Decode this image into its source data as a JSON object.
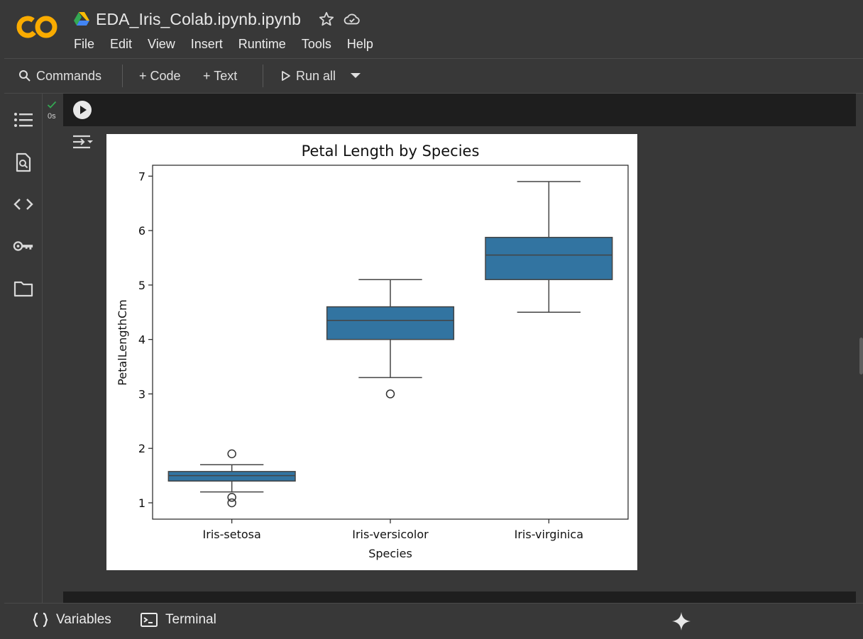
{
  "app": {
    "doc_title": "EDA_Iris_Colab.ipynb.ipynb",
    "logo_text": "CO"
  },
  "menu": [
    "File",
    "Edit",
    "View",
    "Insert",
    "Runtime",
    "Tools",
    "Help"
  ],
  "toolbar": {
    "commands_label": "Commands",
    "code_label": "+ Code",
    "text_label": "+ Text",
    "run_all_label": "Run all"
  },
  "rail_icons": [
    "table-of-contents-icon",
    "find-replace-icon",
    "code-snippets-icon",
    "secrets-key-icon",
    "files-folder-icon"
  ],
  "cell": {
    "exec_time": "0s"
  },
  "bottom": {
    "variables_label": "Variables",
    "terminal_label": "Terminal"
  },
  "colors": {
    "background": "#383838",
    "cell_bar": "#1e1e1e",
    "box_fill": "#3274a1",
    "logo_orange": "#f9ab00",
    "check_green": "#34a853"
  },
  "chart_data": {
    "type": "box",
    "title": "Petal Length by Species",
    "xlabel": "Species",
    "ylabel": "PetalLengthCm",
    "ylim": [
      0.7,
      7.2
    ],
    "yticks": [
      1,
      2,
      3,
      4,
      5,
      6,
      7
    ],
    "categories": [
      "Iris-setosa",
      "Iris-versicolor",
      "Iris-virginica"
    ],
    "boxes": [
      {
        "whisker_low": 1.2,
        "q1": 1.4,
        "median": 1.5,
        "q3": 1.575,
        "whisker_high": 1.7,
        "outliers": [
          1.0,
          1.1,
          1.9
        ]
      },
      {
        "whisker_low": 3.3,
        "q1": 4.0,
        "median": 4.35,
        "q3": 4.6,
        "whisker_high": 5.1,
        "outliers": [
          3.0
        ]
      },
      {
        "whisker_low": 4.5,
        "q1": 5.1,
        "median": 5.55,
        "q3": 5.875,
        "whisker_high": 6.9,
        "outliers": []
      }
    ],
    "grid": false,
    "legend": "none"
  }
}
